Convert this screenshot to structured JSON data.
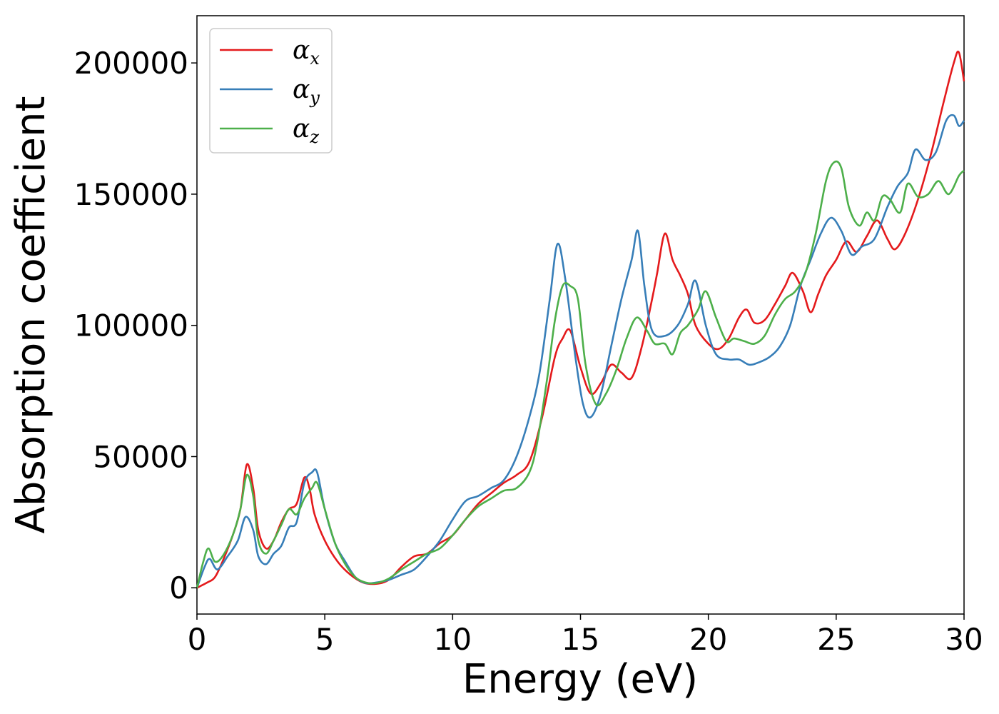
{
  "chart_data": {
    "type": "line",
    "title": "",
    "xlabel": "Energy (eV)",
    "ylabel": "Absorption coefficient",
    "xlim": [
      0,
      30
    ],
    "ylim": [
      -10000,
      218000
    ],
    "xticks": [
      0,
      5,
      10,
      15,
      20,
      25,
      30
    ],
    "yticks": [
      0,
      50000,
      100000,
      150000,
      200000
    ],
    "legend_position": "top-left",
    "grid": false,
    "series": [
      {
        "name": "αx",
        "base": "α",
        "sub": "x",
        "color": "#e41a1c",
        "points": [
          [
            0,
            0
          ],
          [
            0.4,
            2000
          ],
          [
            0.7,
            4000
          ],
          [
            1.0,
            10000
          ],
          [
            1.4,
            20000
          ],
          [
            1.7,
            30000
          ],
          [
            1.95,
            47000
          ],
          [
            2.2,
            38000
          ],
          [
            2.4,
            22000
          ],
          [
            2.7,
            15000
          ],
          [
            3.0,
            18000
          ],
          [
            3.3,
            25000
          ],
          [
            3.6,
            30000
          ],
          [
            3.9,
            32000
          ],
          [
            4.2,
            42000
          ],
          [
            4.4,
            38000
          ],
          [
            4.6,
            28000
          ],
          [
            5.0,
            18000
          ],
          [
            5.5,
            10000
          ],
          [
            6.0,
            5000
          ],
          [
            6.5,
            2000
          ],
          [
            7.0,
            1500
          ],
          [
            7.5,
            3000
          ],
          [
            8.0,
            8000
          ],
          [
            8.5,
            12000
          ],
          [
            9.0,
            13000
          ],
          [
            9.5,
            17000
          ],
          [
            10.0,
            20000
          ],
          [
            10.5,
            26000
          ],
          [
            11.0,
            32000
          ],
          [
            11.5,
            36000
          ],
          [
            12.0,
            40000
          ],
          [
            12.5,
            43000
          ],
          [
            13.0,
            48000
          ],
          [
            13.5,
            65000
          ],
          [
            14.0,
            88000
          ],
          [
            14.3,
            95000
          ],
          [
            14.6,
            98000
          ],
          [
            15.0,
            84000
          ],
          [
            15.4,
            74000
          ],
          [
            15.8,
            78000
          ],
          [
            16.2,
            85000
          ],
          [
            16.6,
            82000
          ],
          [
            17.0,
            80000
          ],
          [
            17.4,
            92000
          ],
          [
            17.8,
            110000
          ],
          [
            18.0,
            120000
          ],
          [
            18.3,
            135000
          ],
          [
            18.6,
            125000
          ],
          [
            18.9,
            119000
          ],
          [
            19.2,
            112000
          ],
          [
            19.5,
            100000
          ],
          [
            20.0,
            93000
          ],
          [
            20.4,
            91000
          ],
          [
            20.8,
            95000
          ],
          [
            21.2,
            103000
          ],
          [
            21.5,
            106000
          ],
          [
            21.8,
            101000
          ],
          [
            22.2,
            102000
          ],
          [
            22.6,
            108000
          ],
          [
            23.0,
            115000
          ],
          [
            23.3,
            120000
          ],
          [
            23.7,
            113000
          ],
          [
            24.0,
            105000
          ],
          [
            24.3,
            112000
          ],
          [
            24.6,
            119000
          ],
          [
            25.0,
            125000
          ],
          [
            25.4,
            132000
          ],
          [
            25.8,
            128000
          ],
          [
            26.2,
            134000
          ],
          [
            26.6,
            140000
          ],
          [
            27.0,
            133000
          ],
          [
            27.3,
            129000
          ],
          [
            27.7,
            135000
          ],
          [
            28.2,
            148000
          ],
          [
            28.7,
            165000
          ],
          [
            29.2,
            185000
          ],
          [
            29.6,
            200000
          ],
          [
            29.8,
            204000
          ],
          [
            30.0,
            193000
          ]
        ]
      },
      {
        "name": "αy",
        "base": "α",
        "sub": "y",
        "color": "#377eb8",
        "points": [
          [
            0,
            0
          ],
          [
            0.3,
            8000
          ],
          [
            0.5,
            11000
          ],
          [
            0.8,
            7000
          ],
          [
            1.2,
            12000
          ],
          [
            1.6,
            18000
          ],
          [
            1.9,
            27000
          ],
          [
            2.2,
            22000
          ],
          [
            2.4,
            12000
          ],
          [
            2.7,
            9000
          ],
          [
            3.0,
            13000
          ],
          [
            3.3,
            16000
          ],
          [
            3.6,
            23000
          ],
          [
            3.9,
            25000
          ],
          [
            4.2,
            40000
          ],
          [
            4.5,
            44000
          ],
          [
            4.7,
            44000
          ],
          [
            5.0,
            30000
          ],
          [
            5.4,
            17000
          ],
          [
            5.8,
            10000
          ],
          [
            6.2,
            4000
          ],
          [
            6.6,
            1800
          ],
          [
            7.0,
            2000
          ],
          [
            7.5,
            3000
          ],
          [
            8.0,
            5000
          ],
          [
            8.5,
            7000
          ],
          [
            9.0,
            12000
          ],
          [
            9.5,
            18000
          ],
          [
            10.0,
            26000
          ],
          [
            10.5,
            33000
          ],
          [
            11.0,
            35000
          ],
          [
            11.5,
            38000
          ],
          [
            12.0,
            41000
          ],
          [
            12.5,
            50000
          ],
          [
            13.0,
            65000
          ],
          [
            13.4,
            82000
          ],
          [
            13.8,
            110000
          ],
          [
            14.1,
            131000
          ],
          [
            14.4,
            118000
          ],
          [
            14.8,
            88000
          ],
          [
            15.1,
            70000
          ],
          [
            15.4,
            65000
          ],
          [
            15.8,
            74000
          ],
          [
            16.2,
            92000
          ],
          [
            16.6,
            110000
          ],
          [
            17.0,
            125000
          ],
          [
            17.25,
            136000
          ],
          [
            17.5,
            115000
          ],
          [
            17.8,
            98000
          ],
          [
            18.3,
            96000
          ],
          [
            18.8,
            100000
          ],
          [
            19.2,
            108000
          ],
          [
            19.5,
            117000
          ],
          [
            19.9,
            100000
          ],
          [
            20.3,
            89000
          ],
          [
            20.8,
            87000
          ],
          [
            21.2,
            87000
          ],
          [
            21.6,
            85000
          ],
          [
            22.0,
            86000
          ],
          [
            22.4,
            88000
          ],
          [
            22.8,
            92000
          ],
          [
            23.2,
            100000
          ],
          [
            23.6,
            115000
          ],
          [
            24.0,
            125000
          ],
          [
            24.4,
            135000
          ],
          [
            24.8,
            141000
          ],
          [
            25.2,
            136000
          ],
          [
            25.6,
            127000
          ],
          [
            26.0,
            130000
          ],
          [
            26.5,
            133000
          ],
          [
            27.0,
            145000
          ],
          [
            27.4,
            153000
          ],
          [
            27.8,
            158000
          ],
          [
            28.1,
            167000
          ],
          [
            28.5,
            163000
          ],
          [
            28.9,
            166000
          ],
          [
            29.3,
            178000
          ],
          [
            29.6,
            180000
          ],
          [
            29.8,
            176000
          ],
          [
            30.0,
            178000
          ]
        ]
      },
      {
        "name": "αz",
        "base": "α",
        "sub": "z",
        "color": "#4daf4a",
        "points": [
          [
            0,
            0
          ],
          [
            0.25,
            10000
          ],
          [
            0.45,
            15000
          ],
          [
            0.7,
            10000
          ],
          [
            1.0,
            12000
          ],
          [
            1.4,
            20000
          ],
          [
            1.7,
            30000
          ],
          [
            1.95,
            43000
          ],
          [
            2.2,
            35000
          ],
          [
            2.4,
            18000
          ],
          [
            2.7,
            13000
          ],
          [
            3.0,
            18000
          ],
          [
            3.3,
            24000
          ],
          [
            3.6,
            30000
          ],
          [
            3.9,
            28000
          ],
          [
            4.2,
            34000
          ],
          [
            4.5,
            38000
          ],
          [
            4.7,
            40000
          ],
          [
            5.0,
            30000
          ],
          [
            5.4,
            17000
          ],
          [
            5.8,
            9000
          ],
          [
            6.2,
            4000
          ],
          [
            6.6,
            2000
          ],
          [
            7.0,
            1800
          ],
          [
            7.5,
            3500
          ],
          [
            8.0,
            7000
          ],
          [
            8.5,
            10000
          ],
          [
            9.0,
            13000
          ],
          [
            9.5,
            15000
          ],
          [
            10.0,
            20000
          ],
          [
            10.5,
            26000
          ],
          [
            11.0,
            31000
          ],
          [
            11.5,
            34000
          ],
          [
            12.0,
            37000
          ],
          [
            12.5,
            38000
          ],
          [
            13.0,
            44000
          ],
          [
            13.3,
            55000
          ],
          [
            13.7,
            80000
          ],
          [
            14.0,
            102000
          ],
          [
            14.3,
            115000
          ],
          [
            14.6,
            115000
          ],
          [
            14.9,
            110000
          ],
          [
            15.2,
            85000
          ],
          [
            15.6,
            70000
          ],
          [
            16.0,
            74000
          ],
          [
            16.4,
            83000
          ],
          [
            16.8,
            95000
          ],
          [
            17.2,
            103000
          ],
          [
            17.6,
            98000
          ],
          [
            17.9,
            93000
          ],
          [
            18.3,
            93000
          ],
          [
            18.6,
            89000
          ],
          [
            18.9,
            97000
          ],
          [
            19.2,
            100000
          ],
          [
            19.6,
            106000
          ],
          [
            19.9,
            113000
          ],
          [
            20.3,
            103000
          ],
          [
            20.7,
            94000
          ],
          [
            21.0,
            95000
          ],
          [
            21.4,
            94000
          ],
          [
            21.8,
            93000
          ],
          [
            22.2,
            96000
          ],
          [
            22.6,
            104000
          ],
          [
            23.0,
            110000
          ],
          [
            23.4,
            113000
          ],
          [
            23.8,
            120000
          ],
          [
            24.2,
            135000
          ],
          [
            24.6,
            155000
          ],
          [
            24.9,
            162000
          ],
          [
            25.2,
            160000
          ],
          [
            25.5,
            145000
          ],
          [
            25.9,
            138000
          ],
          [
            26.2,
            143000
          ],
          [
            26.5,
            140000
          ],
          [
            26.8,
            149000
          ],
          [
            27.1,
            148000
          ],
          [
            27.5,
            143000
          ],
          [
            27.8,
            154000
          ],
          [
            28.2,
            149000
          ],
          [
            28.6,
            150000
          ],
          [
            29.0,
            155000
          ],
          [
            29.4,
            150000
          ],
          [
            29.8,
            157000
          ],
          [
            30.0,
            159000
          ]
        ]
      }
    ]
  }
}
